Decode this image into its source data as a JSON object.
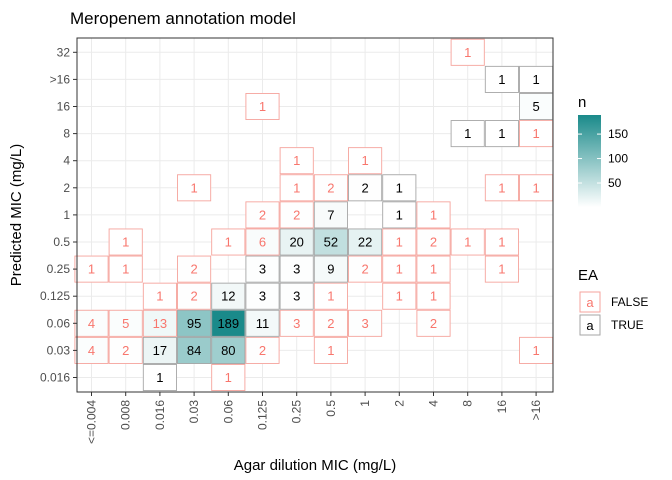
{
  "chart_data": {
    "type": "heatmap",
    "title": "Meropenem annotation model",
    "xlabel": "Agar dilution MIC (mg/L)",
    "ylabel": "Predicted MIC (mg/L)",
    "x_categories": [
      "<=0.004",
      "0.008",
      "0.016",
      "0.03",
      "0.06",
      "0.125",
      "0.25",
      "0.5",
      "1",
      "2",
      "4",
      "8",
      "16",
      ">16"
    ],
    "y_categories": [
      "0.016",
      "0.03",
      "0.06",
      "0.125",
      "0.25",
      "0.5",
      "1",
      "2",
      "4",
      "8",
      "16",
      ">16",
      "32"
    ],
    "cells": [
      {
        "x": "0.016",
        "y": "0.016",
        "n": 1,
        "ea": true
      },
      {
        "x": "0.06",
        "y": "0.016",
        "n": 1,
        "ea": false
      },
      {
        "x": "<=0.004",
        "y": "0.03",
        "n": 4,
        "ea": false
      },
      {
        "x": "0.008",
        "y": "0.03",
        "n": 2,
        "ea": false
      },
      {
        "x": "0.016",
        "y": "0.03",
        "n": 17,
        "ea": true
      },
      {
        "x": "0.03",
        "y": "0.03",
        "n": 84,
        "ea": true
      },
      {
        "x": "0.06",
        "y": "0.03",
        "n": 80,
        "ea": true
      },
      {
        "x": "0.125",
        "y": "0.03",
        "n": 2,
        "ea": false
      },
      {
        "x": "0.5",
        "y": "0.03",
        "n": 1,
        "ea": false
      },
      {
        "x": ">16",
        "y": "0.03",
        "n": 1,
        "ea": false
      },
      {
        "x": "<=0.004",
        "y": "0.06",
        "n": 4,
        "ea": false
      },
      {
        "x": "0.008",
        "y": "0.06",
        "n": 5,
        "ea": false
      },
      {
        "x": "0.016",
        "y": "0.06",
        "n": 13,
        "ea": false
      },
      {
        "x": "0.03",
        "y": "0.06",
        "n": 95,
        "ea": true
      },
      {
        "x": "0.06",
        "y": "0.06",
        "n": 189,
        "ea": true
      },
      {
        "x": "0.125",
        "y": "0.06",
        "n": 11,
        "ea": true
      },
      {
        "x": "0.25",
        "y": "0.06",
        "n": 3,
        "ea": false
      },
      {
        "x": "0.5",
        "y": "0.06",
        "n": 2,
        "ea": false
      },
      {
        "x": "1",
        "y": "0.06",
        "n": 3,
        "ea": false
      },
      {
        "x": "4",
        "y": "0.06",
        "n": 2,
        "ea": false
      },
      {
        "x": "0.016",
        "y": "0.125",
        "n": 1,
        "ea": false
      },
      {
        "x": "0.03",
        "y": "0.125",
        "n": 2,
        "ea": false
      },
      {
        "x": "0.06",
        "y": "0.125",
        "n": 12,
        "ea": true
      },
      {
        "x": "0.125",
        "y": "0.125",
        "n": 3,
        "ea": true
      },
      {
        "x": "0.25",
        "y": "0.125",
        "n": 3,
        "ea": true
      },
      {
        "x": "0.5",
        "y": "0.125",
        "n": 1,
        "ea": false
      },
      {
        "x": "2",
        "y": "0.125",
        "n": 1,
        "ea": false
      },
      {
        "x": "4",
        "y": "0.125",
        "n": 1,
        "ea": false
      },
      {
        "x": "<=0.004",
        "y": "0.25",
        "n": 1,
        "ea": false
      },
      {
        "x": "0.008",
        "y": "0.25",
        "n": 1,
        "ea": false
      },
      {
        "x": "0.03",
        "y": "0.25",
        "n": 2,
        "ea": false
      },
      {
        "x": "0.125",
        "y": "0.25",
        "n": 3,
        "ea": true
      },
      {
        "x": "0.25",
        "y": "0.25",
        "n": 3,
        "ea": true
      },
      {
        "x": "0.5",
        "y": "0.25",
        "n": 9,
        "ea": true
      },
      {
        "x": "1",
        "y": "0.25",
        "n": 2,
        "ea": false
      },
      {
        "x": "2",
        "y": "0.25",
        "n": 1,
        "ea": false
      },
      {
        "x": "4",
        "y": "0.25",
        "n": 1,
        "ea": false
      },
      {
        "x": "16",
        "y": "0.25",
        "n": 1,
        "ea": false
      },
      {
        "x": "0.008",
        "y": "0.5",
        "n": 1,
        "ea": false
      },
      {
        "x": "0.06",
        "y": "0.5",
        "n": 1,
        "ea": false
      },
      {
        "x": "0.125",
        "y": "0.5",
        "n": 6,
        "ea": false
      },
      {
        "x": "0.25",
        "y": "0.5",
        "n": 20,
        "ea": true
      },
      {
        "x": "0.5",
        "y": "0.5",
        "n": 52,
        "ea": true
      },
      {
        "x": "1",
        "y": "0.5",
        "n": 22,
        "ea": true
      },
      {
        "x": "2",
        "y": "0.5",
        "n": 1,
        "ea": false
      },
      {
        "x": "4",
        "y": "0.5",
        "n": 2,
        "ea": false
      },
      {
        "x": "8",
        "y": "0.5",
        "n": 1,
        "ea": false
      },
      {
        "x": "16",
        "y": "0.5",
        "n": 1,
        "ea": false
      },
      {
        "x": "0.125",
        "y": "1",
        "n": 2,
        "ea": false
      },
      {
        "x": "0.25",
        "y": "1",
        "n": 2,
        "ea": false
      },
      {
        "x": "0.5",
        "y": "1",
        "n": 7,
        "ea": true
      },
      {
        "x": "2",
        "y": "1",
        "n": 1,
        "ea": true
      },
      {
        "x": "4",
        "y": "1",
        "n": 1,
        "ea": false
      },
      {
        "x": "0.03",
        "y": "2",
        "n": 1,
        "ea": false
      },
      {
        "x": "0.25",
        "y": "2",
        "n": 1,
        "ea": false
      },
      {
        "x": "0.5",
        "y": "2",
        "n": 2,
        "ea": false
      },
      {
        "x": "1",
        "y": "2",
        "n": 2,
        "ea": true
      },
      {
        "x": "2",
        "y": "2",
        "n": 1,
        "ea": true
      },
      {
        "x": "16",
        "y": "2",
        "n": 1,
        "ea": false
      },
      {
        "x": ">16",
        "y": "2",
        "n": 1,
        "ea": false
      },
      {
        "x": "0.25",
        "y": "4",
        "n": 1,
        "ea": false
      },
      {
        "x": "1",
        "y": "4",
        "n": 1,
        "ea": false
      },
      {
        "x": "8",
        "y": "8",
        "n": 1,
        "ea": true
      },
      {
        "x": "16",
        "y": "8",
        "n": 1,
        "ea": true
      },
      {
        "x": ">16",
        "y": "8",
        "n": 1,
        "ea": false
      },
      {
        "x": "0.125",
        "y": "16",
        "n": 1,
        "ea": false
      },
      {
        "x": ">16",
        "y": "16",
        "n": 5,
        "ea": true
      },
      {
        "x": "16",
        "y": ">16",
        "n": 1,
        "ea": true
      },
      {
        "x": ">16",
        "y": ">16",
        "n": 1,
        "ea": true
      },
      {
        "x": "8",
        "y": "32",
        "n": 1,
        "ea": false
      }
    ],
    "fill_scale": {
      "name": "n",
      "low_color": "#ffffff",
      "high_color": "#1a8a8a",
      "min": 1,
      "max": 189,
      "breaks": [
        50,
        100,
        150
      ]
    },
    "legend_ea": {
      "title": "EA",
      "items": [
        {
          "key": "a",
          "label": "FALSE",
          "color": "#f8766d"
        },
        {
          "key": "a",
          "label": "TRUE",
          "color": "#7f7f7f"
        }
      ]
    },
    "grid": true,
    "legend_position": "right"
  }
}
